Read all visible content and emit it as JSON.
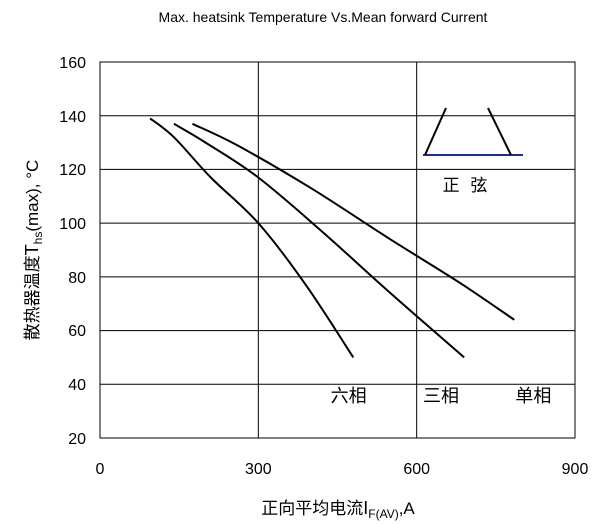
{
  "chart_data": {
    "type": "line",
    "title": "Max. heatsink Temperature Vs.Mean forward Current",
    "xlabel": {
      "main": "正向平均电流",
      "symbol": "I",
      "sub": "F(AV)",
      "tail": ",A"
    },
    "ylabel": {
      "main": "散热器温度",
      "symbol": "T",
      "sub": "hs",
      "tail": "(max), °C"
    },
    "xlim": [
      0,
      900
    ],
    "ylim": [
      20,
      160
    ],
    "xticks": [
      0,
      300,
      600,
      900
    ],
    "yticks": [
      20,
      40,
      60,
      80,
      100,
      120,
      140,
      160
    ],
    "grid": true,
    "series": [
      {
        "name": "六相",
        "points": [
          [
            95,
            139
          ],
          [
            140,
            132
          ],
          [
            210,
            117
          ],
          [
            300,
            100
          ],
          [
            390,
            77
          ],
          [
            480,
            50
          ]
        ]
      },
      {
        "name": "三相",
        "points": [
          [
            140,
            137
          ],
          [
            200,
            130
          ],
          [
            300,
            117
          ],
          [
            420,
            97
          ],
          [
            550,
            74
          ],
          [
            690,
            50
          ]
        ]
      },
      {
        "name": "单相",
        "points": [
          [
            175,
            137
          ],
          [
            260,
            129
          ],
          [
            400,
            113
          ],
          [
            550,
            94
          ],
          [
            680,
            78
          ],
          [
            785,
            64
          ]
        ]
      }
    ],
    "series_labels": [
      {
        "text": "六相",
        "x": 437,
        "y": 36
      },
      {
        "text": "三相",
        "x": 612,
        "y": 36
      },
      {
        "text": "单相",
        "x": 787,
        "y": 36
      }
    ],
    "inset": {
      "caption": "正  弦"
    }
  }
}
